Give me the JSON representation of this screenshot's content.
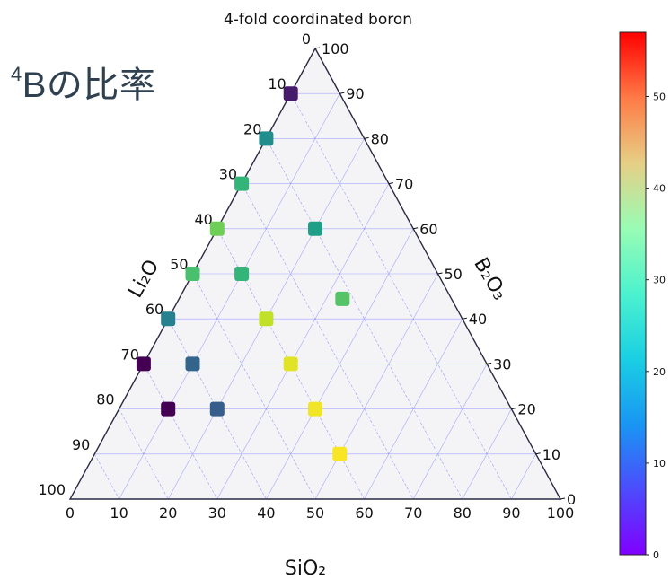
{
  "slide_label": {
    "superscript": "4",
    "text": "Bの比率"
  },
  "colors": {
    "plot_background": "#f4f4f6",
    "grid_line": "#8a8cff",
    "frame": "#2a2a44"
  },
  "chart_data": {
    "type": "scatter",
    "subtype": "ternary",
    "title": "4-fold coordinated boron",
    "axes": {
      "bottom": {
        "label": "SiO₂",
        "ticks": [
          0,
          10,
          20,
          30,
          40,
          50,
          60,
          70,
          80,
          90,
          100
        ]
      },
      "left": {
        "label": "Li₂O",
        "ticks": [
          0,
          10,
          20,
          30,
          40,
          50,
          60,
          70,
          80,
          90,
          100
        ]
      },
      "right": {
        "label": "B₂O₃",
        "ticks": [
          0,
          10,
          20,
          30,
          40,
          50,
          60,
          70,
          80,
          90,
          100
        ]
      }
    },
    "grid": true,
    "colorbar": {
      "colormap": "rainbow",
      "range": [
        0,
        57
      ],
      "ticks": [
        0,
        10,
        20,
        30,
        40,
        50
      ]
    },
    "points": [
      {
        "SiO2": 0,
        "Li2O": 10,
        "B2O3": 90,
        "value": 3
      },
      {
        "SiO2": 0,
        "Li2O": 20,
        "B2O3": 80,
        "value": 20
      },
      {
        "SiO2": 0,
        "Li2O": 30,
        "B2O3": 70,
        "value": 27
      },
      {
        "SiO2": 0,
        "Li2O": 40,
        "B2O3": 60,
        "value": 32
      },
      {
        "SiO2": 0,
        "Li2O": 50,
        "B2O3": 50,
        "value": 29
      },
      {
        "SiO2": 0,
        "Li2O": 60,
        "B2O3": 40,
        "value": 18
      },
      {
        "SiO2": 0,
        "Li2O": 70,
        "B2O3": 30,
        "value": 0
      },
      {
        "SiO2": 10,
        "Li2O": 70,
        "B2O3": 20,
        "value": 0
      },
      {
        "SiO2": 10,
        "Li2O": 60,
        "B2O3": 30,
        "value": 14
      },
      {
        "SiO2": 20,
        "Li2O": 60,
        "B2O3": 20,
        "value": 13
      },
      {
        "SiO2": 10,
        "Li2O": 40,
        "B2O3": 50,
        "value": 27
      },
      {
        "SiO2": 20,
        "Li2O": 20,
        "B2O3": 60,
        "value": 23
      },
      {
        "SiO2": 20,
        "Li2O": 40,
        "B2O3": 40,
        "value": 38
      },
      {
        "SiO2": 30,
        "Li2O": 40,
        "B2O3": 30,
        "value": 42
      },
      {
        "SiO2": 30,
        "Li2O": 20,
        "B2O3": 40,
        "value": 30
      },
      {
        "SiO2": 40,
        "Li2O": 40,
        "B2O3": 20,
        "value": 44
      },
      {
        "SiO2": 50,
        "Li2O": 40,
        "B2O3": 10,
        "value": 45
      }
    ]
  }
}
